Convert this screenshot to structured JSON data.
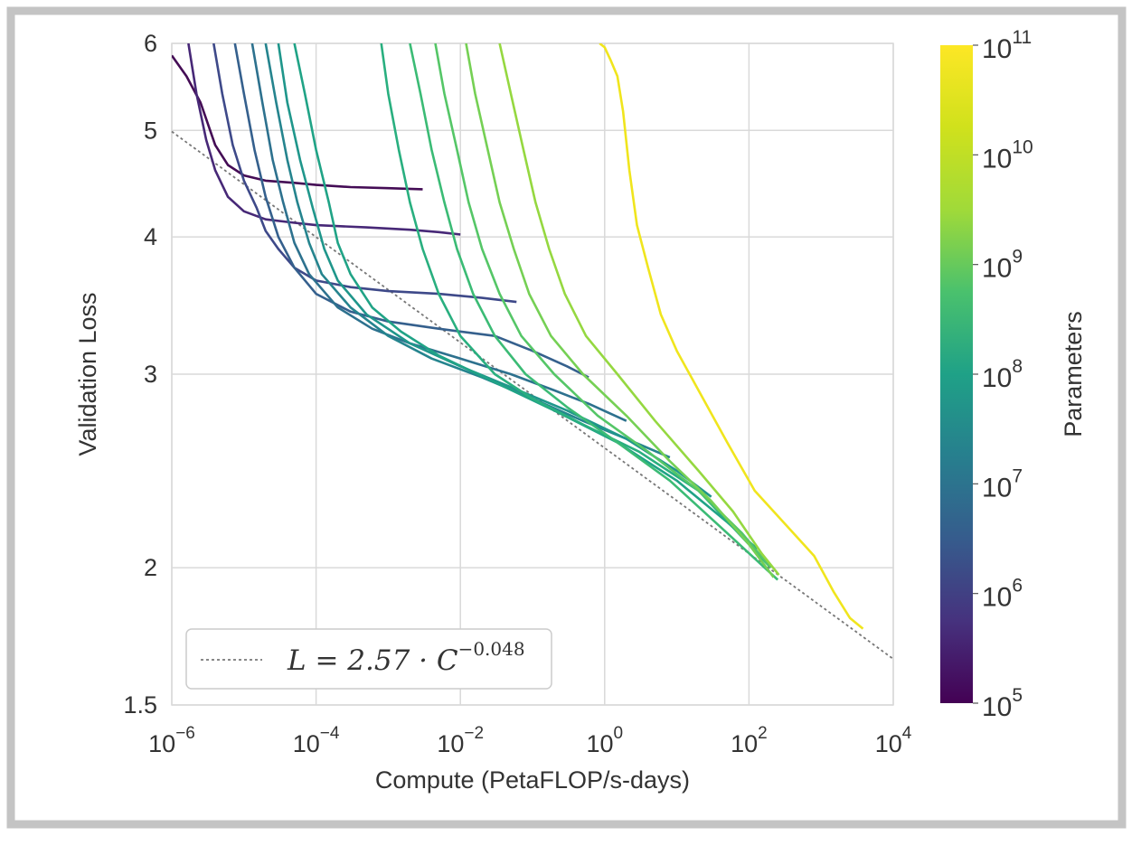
{
  "chart_data": {
    "type": "line",
    "title": "",
    "xlabel": "Compute (PetaFLOP/s-days)",
    "ylabel": "Validation Loss",
    "x_scale": "log",
    "y_scale": "log",
    "xlim": [
      1e-06,
      10000
    ],
    "ylim": [
      1.5,
      6
    ],
    "grid": true,
    "x_ticks": [
      {
        "value": 1e-06,
        "base": "10",
        "exp": "−6"
      },
      {
        "value": 0.0001,
        "base": "10",
        "exp": "−4"
      },
      {
        "value": 0.01,
        "base": "10",
        "exp": "−2"
      },
      {
        "value": 1,
        "base": "10",
        "exp": "0"
      },
      {
        "value": 100,
        "base": "10",
        "exp": "2"
      },
      {
        "value": 10000,
        "base": "10",
        "exp": "4"
      }
    ],
    "y_ticks": [
      {
        "value": 1.5,
        "label": "1.5"
      },
      {
        "value": 2,
        "label": "2"
      },
      {
        "value": 3,
        "label": "3"
      },
      {
        "value": 4,
        "label": "4"
      },
      {
        "value": 5,
        "label": "5"
      },
      {
        "value": 6,
        "label": "6"
      }
    ],
    "legend": {
      "placement": "lower-left",
      "entries": [
        {
          "style": "dotted",
          "color": "#777777",
          "prefix": "L = 2.57 · C",
          "exponent": "−0.048"
        }
      ]
    },
    "fit_line": {
      "a": 2.57,
      "b": -0.048
    },
    "colorbar": {
      "label": "Parameters",
      "scale": "log",
      "colormap": "viridis",
      "range": [
        100000,
        100000000000
      ],
      "ticks": [
        {
          "value": 100000,
          "base": "10",
          "exp": "5"
        },
        {
          "value": 1000000,
          "base": "10",
          "exp": "6"
        },
        {
          "value": 10000000,
          "base": "10",
          "exp": "7"
        },
        {
          "value": 100000000,
          "base": "10",
          "exp": "8"
        },
        {
          "value": 1000000000,
          "base": "10",
          "exp": "9"
        },
        {
          "value": 10000000000,
          "base": "10",
          "exp": "10"
        },
        {
          "value": 100000000000,
          "base": "10",
          "exp": "11"
        }
      ]
    },
    "series": [
      {
        "params": 100000,
        "color": "#440c55",
        "x": [
          1e-06,
          1.6e-06,
          2.5e-06,
          4e-06,
          6e-06,
          1e-05,
          2e-05,
          5e-05,
          0.0001,
          0.0003,
          0.001,
          0.003
        ],
        "y": [
          5.85,
          5.6,
          5.3,
          4.85,
          4.65,
          4.55,
          4.5,
          4.48,
          4.46,
          4.44,
          4.43,
          4.42
        ]
      },
      {
        "params": 316000,
        "color": "#472877",
        "x": [
          1.7e-06,
          2.2e-06,
          3e-06,
          4e-06,
          6e-06,
          1e-05,
          2e-05,
          5e-05,
          0.0001,
          0.0005,
          0.002,
          0.005,
          0.01
        ],
        "y": [
          6,
          5.4,
          4.9,
          4.6,
          4.35,
          4.22,
          4.15,
          4.12,
          4.1,
          4.08,
          4.06,
          4.04,
          4.02
        ]
      },
      {
        "params": 1000000,
        "color": "#3e4989",
        "x": [
          3.8e-06,
          5e-06,
          7e-06,
          1e-05,
          1.5e-05,
          2e-05,
          3e-05,
          5e-05,
          0.0001,
          0.0003,
          0.001,
          0.005,
          0.02,
          0.06
        ],
        "y": [
          6,
          5.4,
          4.85,
          4.5,
          4.25,
          4.05,
          3.9,
          3.75,
          3.65,
          3.6,
          3.57,
          3.55,
          3.52,
          3.49
        ]
      },
      {
        "params": 3000000,
        "color": "#35608d",
        "x": [
          7.5e-06,
          1e-05,
          1.4e-05,
          2e-05,
          3e-05,
          5e-05,
          0.0001,
          0.0003,
          0.001,
          0.005,
          0.03,
          0.1,
          0.3,
          0.6
        ],
        "y": [
          6,
          5.4,
          4.8,
          4.35,
          4.0,
          3.75,
          3.55,
          3.42,
          3.35,
          3.3,
          3.25,
          3.15,
          3.05,
          2.98
        ]
      },
      {
        "params": 10000000,
        "color": "#2d718e",
        "x": [
          1.3e-05,
          1.8e-05,
          2.5e-05,
          3.5e-05,
          5e-05,
          8e-05,
          0.0002,
          0.0006,
          0.002,
          0.01,
          0.05,
          0.2,
          0.6,
          2
        ],
        "y": [
          6,
          5.3,
          4.7,
          4.3,
          3.95,
          3.7,
          3.45,
          3.3,
          3.2,
          3.1,
          3.0,
          2.9,
          2.82,
          2.72
        ]
      },
      {
        "params": 31000000,
        "color": "#25848e",
        "x": [
          2e-05,
          2.8e-05,
          4e-05,
          5.5e-05,
          8e-05,
          0.00012,
          0.0003,
          0.001,
          0.004,
          0.02,
          0.1,
          0.5,
          2,
          8
        ],
        "y": [
          6,
          5.3,
          4.7,
          4.3,
          3.95,
          3.7,
          3.45,
          3.25,
          3.1,
          2.98,
          2.85,
          2.72,
          2.62,
          2.52
        ]
      },
      {
        "params": 50000000,
        "color": "#1f968b",
        "x": [
          3e-05,
          4e-05,
          6e-05,
          9e-05,
          0.00013,
          0.0002,
          0.0005,
          0.002,
          0.01,
          0.05,
          0.3,
          2,
          10,
          30
        ],
        "y": [
          6,
          5.3,
          4.7,
          4.25,
          3.9,
          3.65,
          3.4,
          3.2,
          3.05,
          2.92,
          2.78,
          2.62,
          2.45,
          2.32
        ]
      },
      {
        "params": 100000000,
        "color": "#20a386",
        "x": [
          5e-05,
          7e-05,
          0.0001,
          0.00015,
          0.0002,
          0.0003,
          0.0006,
          0.0015,
          0.005,
          0.03,
          0.2,
          1.5,
          10,
          50,
          130
        ],
        "y": [
          6,
          5.4,
          4.8,
          4.3,
          3.95,
          3.7,
          3.45,
          3.28,
          3.12,
          2.95,
          2.78,
          2.6,
          2.4,
          2.2,
          2.08
        ]
      },
      {
        "params": 300000000,
        "color": "#29af7f",
        "x": [
          0.0008,
          0.001,
          0.0014,
          0.002,
          0.003,
          0.005,
          0.01,
          0.03,
          0.1,
          0.5,
          3,
          20,
          100,
          200
        ],
        "y": [
          6,
          5.4,
          4.8,
          4.3,
          3.9,
          3.55,
          3.25,
          3.0,
          2.85,
          2.7,
          2.55,
          2.35,
          2.1,
          2.0
        ]
      },
      {
        "params": 700000000,
        "color": "#3bbb75",
        "x": [
          0.002,
          0.0028,
          0.004,
          0.006,
          0.009,
          0.015,
          0.03,
          0.08,
          0.3,
          1.5,
          8,
          50,
          250
        ],
        "y": [
          6,
          5.4,
          4.8,
          4.3,
          3.9,
          3.55,
          3.25,
          3.0,
          2.8,
          2.6,
          2.4,
          2.15,
          1.95
        ]
      },
      {
        "params": 1300000000,
        "color": "#55c667",
        "x": [
          0.0045,
          0.006,
          0.009,
          0.013,
          0.02,
          0.035,
          0.07,
          0.2,
          0.8,
          4,
          20,
          80,
          200
        ],
        "y": [
          6,
          5.4,
          4.8,
          4.3,
          3.9,
          3.55,
          3.25,
          3.0,
          2.75,
          2.55,
          2.35,
          2.15,
          2.0
        ]
      },
      {
        "params": 2600000000,
        "color": "#75d054",
        "x": [
          0.012,
          0.016,
          0.024,
          0.035,
          0.055,
          0.09,
          0.18,
          0.5,
          2,
          8,
          30,
          100,
          220
        ],
        "y": [
          6,
          5.4,
          4.8,
          4.3,
          3.9,
          3.55,
          3.25,
          3.0,
          2.75,
          2.5,
          2.3,
          2.1,
          1.96
        ]
      },
      {
        "params": 6700000000,
        "color": "#95d840",
        "x": [
          0.035,
          0.05,
          0.075,
          0.11,
          0.17,
          0.28,
          0.55,
          1.5,
          5,
          20,
          60,
          150,
          260
        ],
        "y": [
          6,
          5.4,
          4.8,
          4.3,
          3.9,
          3.55,
          3.25,
          3.0,
          2.72,
          2.45,
          2.25,
          2.06,
          1.97
        ]
      },
      {
        "params": 175000000000,
        "color": "#f0e51d",
        "x": [
          0.85,
          1.0,
          1.2,
          1.5,
          1.8,
          2.2,
          2.8,
          4,
          6,
          10,
          20,
          50,
          120,
          300,
          800,
          1500,
          2500,
          3800
        ],
        "y": [
          6,
          5.95,
          5.8,
          5.6,
          5.2,
          4.6,
          4.1,
          3.75,
          3.4,
          3.15,
          2.9,
          2.6,
          2.35,
          2.2,
          2.05,
          1.9,
          1.8,
          1.76
        ]
      }
    ]
  }
}
